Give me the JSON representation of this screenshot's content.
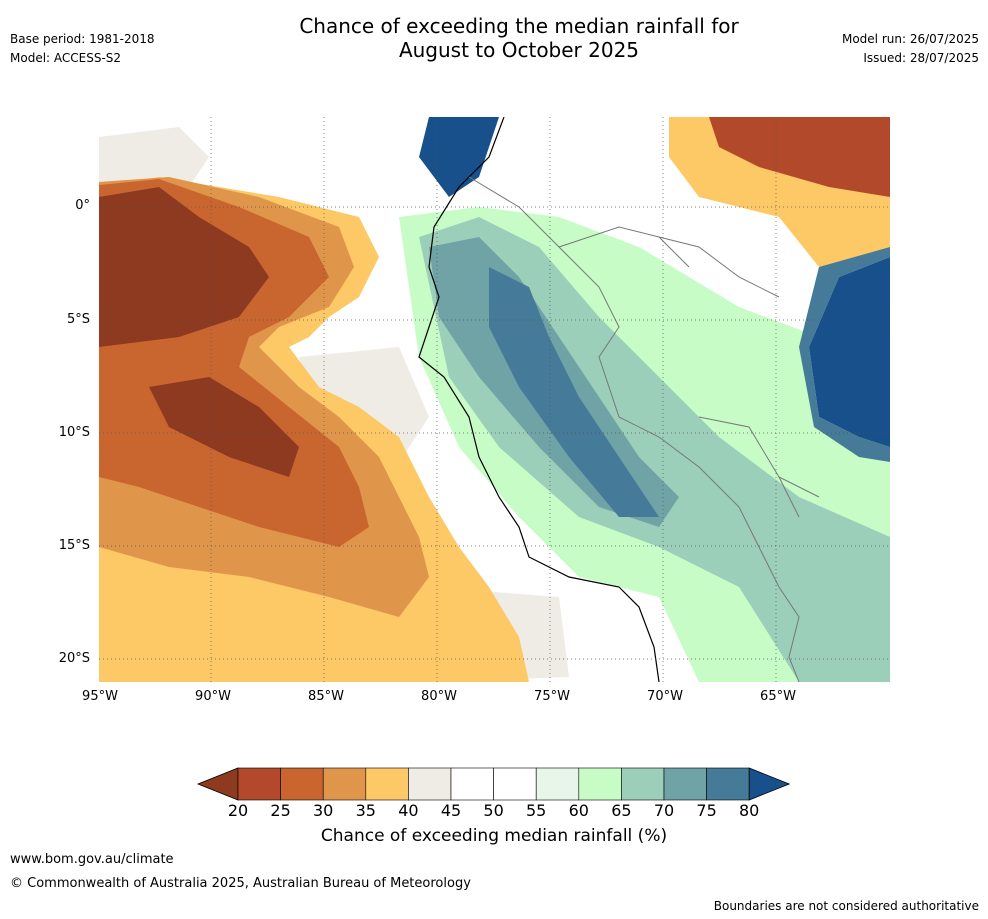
{
  "title": {
    "line1": "Chance of exceeding the median rainfall for",
    "line2": "August to October 2025"
  },
  "meta": {
    "base_period": "Base period: 1981-2018",
    "model": "Model: ACCESS-S2",
    "model_run": "Model run: 26/07/2025",
    "issued": "Issued: 28/07/2025"
  },
  "axes": {
    "lon_labels": [
      "95°W",
      "90°W",
      "85°W",
      "80°W",
      "75°W",
      "70°W",
      "65°W"
    ],
    "lat_labels": [
      "0°",
      "5°S",
      "10°S",
      "15°S",
      "20°S"
    ]
  },
  "colorbar": {
    "ticks": [
      "20",
      "25",
      "30",
      "35",
      "40",
      "45",
      "50",
      "55",
      "60",
      "65",
      "70",
      "75",
      "80"
    ],
    "colors": [
      "#8e3a20",
      "#b2492a",
      "#c9652f",
      "#e0964a",
      "#fdc866",
      "#efece6",
      "#ffffff",
      "#ffffff",
      "#e8f5e9",
      "#c7fcc7",
      "#9bcfb9",
      "#6fa3a6",
      "#457b98",
      "#17508a"
    ],
    "label": "Chance of exceeding median rainfall (%)"
  },
  "footer": {
    "site": "www.bom.gov.au/climate",
    "copyright": "© Commonwealth of Australia 2025, Australian Bureau of Meteorology",
    "disclaimer": "Boundaries are not considered authoritative"
  }
}
